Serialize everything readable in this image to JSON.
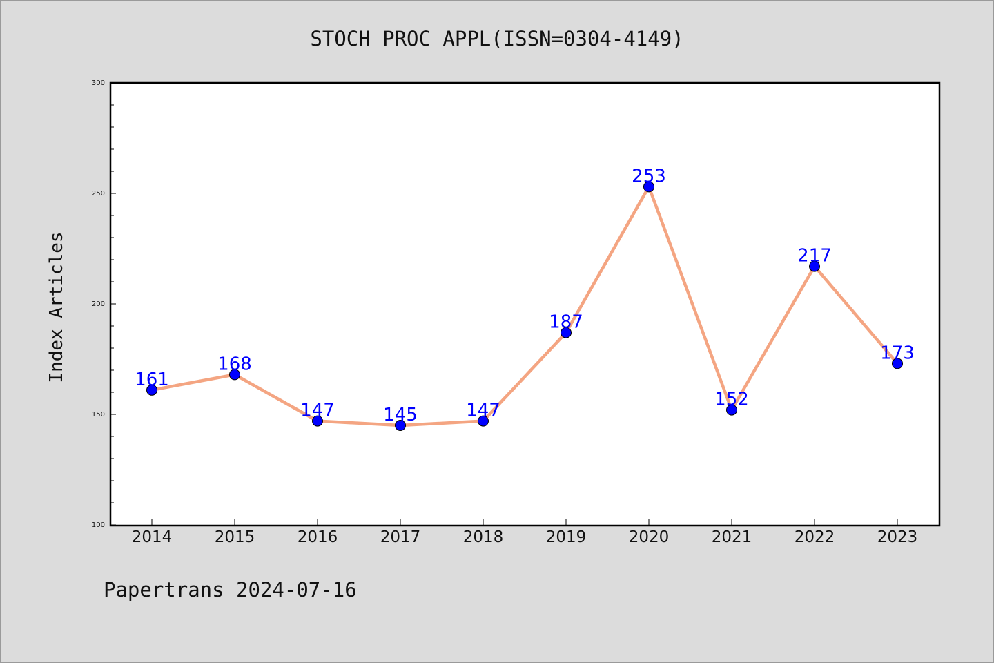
{
  "chart_data": {
    "type": "line",
    "title": "STOCH PROC APPL(ISSN=0304-4149)",
    "xlabel": "",
    "ylabel": "Index Articles",
    "categories": [
      "2014",
      "2015",
      "2016",
      "2017",
      "2018",
      "2019",
      "2020",
      "2021",
      "2022",
      "2023"
    ],
    "series": [
      {
        "values": [
          161,
          168,
          147,
          145,
          147,
          187,
          253,
          152,
          217,
          173
        ]
      }
    ],
    "ylim": [
      100,
      300
    ],
    "yticks": [
      100,
      150,
      200,
      250,
      300
    ],
    "grid": false,
    "data_labels": true,
    "colors": {
      "line": "#f4a582",
      "marker": "#0000ff",
      "label": "#0000ff",
      "plot_bg": "#ffffff",
      "page_bg": "#dcdcdc"
    }
  },
  "footer": "Papertrans 2024-07-16"
}
